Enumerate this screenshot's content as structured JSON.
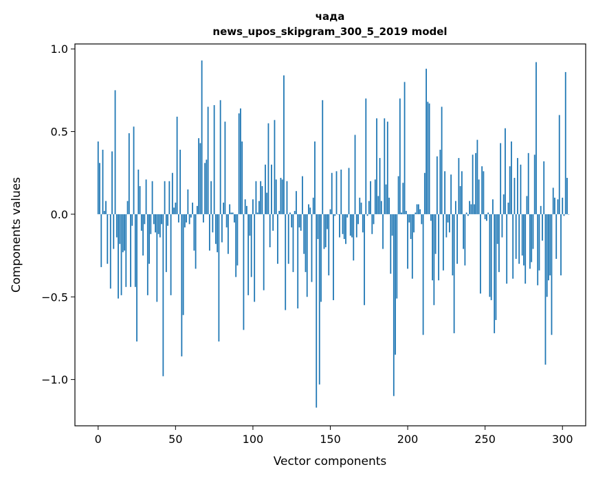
{
  "chart_data": {
    "type": "bar",
    "title_line1": "чада",
    "title_line2": "news_upos_skipgram_300_5_2019 model",
    "xlabel": "Vector components",
    "ylabel": "Components values",
    "xlim": [
      -15,
      315
    ],
    "ylim": [
      -1.28,
      1.03
    ],
    "xticks": [
      0,
      50,
      100,
      150,
      200,
      250,
      300
    ],
    "xtick_labels": [
      "0",
      "50",
      "100",
      "150",
      "200",
      "250",
      "300"
    ],
    "yticks": [
      -1.0,
      -0.5,
      0.0,
      0.5,
      1.0
    ],
    "ytick_labels": [
      "−1.0",
      "−0.5",
      "0.0",
      "0.5",
      "1.0"
    ],
    "bar_color": "#1f77b4",
    "values": [
      0.44,
      0.31,
      -0.32,
      0.39,
      0.02,
      0.08,
      -0.3,
      0.0,
      -0.45,
      0.38,
      -0.21,
      0.75,
      -0.14,
      -0.51,
      -0.18,
      -0.49,
      -0.23,
      -0.22,
      -0.44,
      0.08,
      0.49,
      -0.44,
      -0.07,
      0.53,
      -0.44,
      -0.77,
      0.27,
      0.17,
      -0.1,
      -0.25,
      -0.06,
      0.21,
      -0.49,
      -0.3,
      -0.12,
      0.2,
      -0.06,
      -0.11,
      -0.53,
      -0.12,
      -0.14,
      -0.06,
      -0.98,
      0.2,
      -0.35,
      -0.07,
      0.2,
      -0.49,
      0.25,
      0.04,
      0.07,
      0.59,
      -0.05,
      0.39,
      -0.86,
      -0.61,
      -0.08,
      -0.05,
      0.15,
      -0.06,
      -0.02,
      0.07,
      -0.22,
      -0.33,
      0.05,
      0.46,
      0.43,
      0.93,
      -0.05,
      0.31,
      0.33,
      0.65,
      -0.22,
      0.2,
      -0.11,
      0.66,
      -0.18,
      -0.23,
      -0.77,
      0.69,
      -0.17,
      0.07,
      0.56,
      -0.08,
      -0.24,
      0.06,
      0.01,
      0.01,
      -0.05,
      -0.38,
      -0.31,
      0.61,
      0.64,
      0.44,
      -0.7,
      0.09,
      0.05,
      -0.49,
      -0.13,
      -0.38,
      0.09,
      -0.53,
      0.2,
      0.01,
      0.08,
      0.2,
      0.17,
      -0.46,
      0.3,
      0.13,
      0.55,
      -0.2,
      0.3,
      -0.1,
      0.57,
      0.21,
      -0.3,
      0.02,
      0.22,
      0.21,
      0.84,
      -0.58,
      0.2,
      -0.3,
      0.01,
      -0.08,
      -0.35,
      0.02,
      0.14,
      -0.57,
      -0.08,
      -0.1,
      0.23,
      -0.24,
      -0.35,
      -0.5,
      0.06,
      0.04,
      -0.41,
      0.1,
      0.44,
      -1.17,
      -0.15,
      -1.03,
      -0.53,
      0.69,
      -0.21,
      -0.2,
      -0.09,
      -0.37,
      0.03,
      0.25,
      -0.52,
      -0.01,
      0.26,
      0.0,
      -0.14,
      0.27,
      -0.12,
      -0.15,
      -0.18,
      -0.02,
      0.28,
      -0.13,
      -0.14,
      -0.28,
      0.48,
      -0.14,
      -0.06,
      0.1,
      0.07,
      -0.11,
      -0.55,
      0.7,
      -0.01,
      0.08,
      0.2,
      -0.12,
      -0.06,
      0.21,
      0.58,
      0.11,
      0.34,
      0.08,
      -0.21,
      0.58,
      0.18,
      0.56,
      0.1,
      -0.36,
      -0.13,
      -1.1,
      -0.85,
      -0.51,
      0.23,
      0.7,
      0.01,
      0.19,
      0.8,
      0.02,
      -0.33,
      -0.05,
      -0.15,
      -0.39,
      -0.11,
      0.01,
      0.06,
      0.06,
      0.03,
      -0.06,
      -0.73,
      0.25,
      0.88,
      0.68,
      0.67,
      -0.04,
      -0.4,
      -0.55,
      -0.24,
      0.35,
      -0.4,
      0.39,
      0.65,
      -0.34,
      0.26,
      -0.14,
      -0.05,
      -0.11,
      0.24,
      -0.37,
      -0.72,
      0.08,
      -0.3,
      0.34,
      0.17,
      0.26,
      -0.21,
      -0.31,
      0.01,
      -0.01,
      0.08,
      0.06,
      0.36,
      0.06,
      0.37,
      0.45,
      0.21,
      -0.48,
      0.29,
      0.26,
      -0.03,
      -0.04,
      0.01,
      -0.5,
      -0.52,
      0.09,
      -0.72,
      -0.64,
      -0.18,
      -0.35,
      0.43,
      -0.14,
      0.12,
      0.52,
      -0.42,
      0.07,
      0.29,
      0.44,
      -0.39,
      0.22,
      -0.27,
      0.34,
      -0.3,
      0.3,
      -0.25,
      -0.31,
      -0.42,
      0.11,
      0.37,
      -0.33,
      -0.29,
      -0.21,
      0.36,
      0.92,
      -0.43,
      -0.34,
      0.05,
      -0.16,
      0.32,
      -0.91,
      -0.5,
      -0.4,
      -0.37,
      -0.73,
      0.16,
      0.1,
      -0.27,
      0.09,
      0.6,
      -0.37,
      0.1,
      -0.01,
      0.86,
      0.22,
      0.0
    ]
  }
}
